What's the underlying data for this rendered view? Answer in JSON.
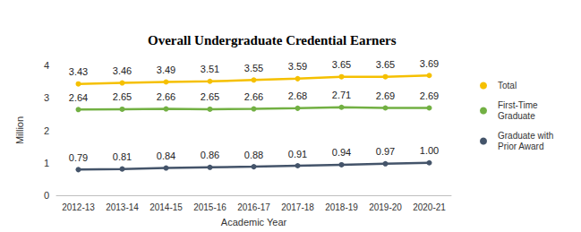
{
  "chart_data": {
    "type": "line",
    "title": "Overall Undergraduate Credential Earners",
    "x_label": "Academic Year",
    "y_label": "Million",
    "categories": [
      "2012-13",
      "2013-14",
      "2014-15",
      "2015-16",
      "2016-17",
      "2017-18",
      "2018-19",
      "2019-20",
      "2020-21"
    ],
    "series": [
      {
        "name": "Total",
        "color": "#f5c000",
        "values": [
          3.43,
          3.46,
          3.49,
          3.51,
          3.55,
          3.59,
          3.65,
          3.65,
          3.69
        ]
      },
      {
        "name": "First-Time Graduate",
        "color": "#72b043",
        "values": [
          2.64,
          2.65,
          2.66,
          2.65,
          2.66,
          2.68,
          2.71,
          2.69,
          2.69
        ]
      },
      {
        "name": "Graduate with Prior Award",
        "color": "#44546a",
        "values": [
          0.79,
          0.81,
          0.84,
          0.86,
          0.88,
          0.91,
          0.94,
          0.97,
          1.0
        ],
        "value_labels": [
          "0.79",
          "0.81",
          "0.84",
          "0.86",
          "0.88",
          "0.91",
          "0.94",
          "0.97",
          "1.00"
        ]
      }
    ],
    "ylim": [
      0,
      4
    ],
    "yticks": [
      0,
      1,
      2,
      3,
      4
    ],
    "grid": false,
    "legend": "right",
    "data_labels": true,
    "marker": "circle"
  }
}
